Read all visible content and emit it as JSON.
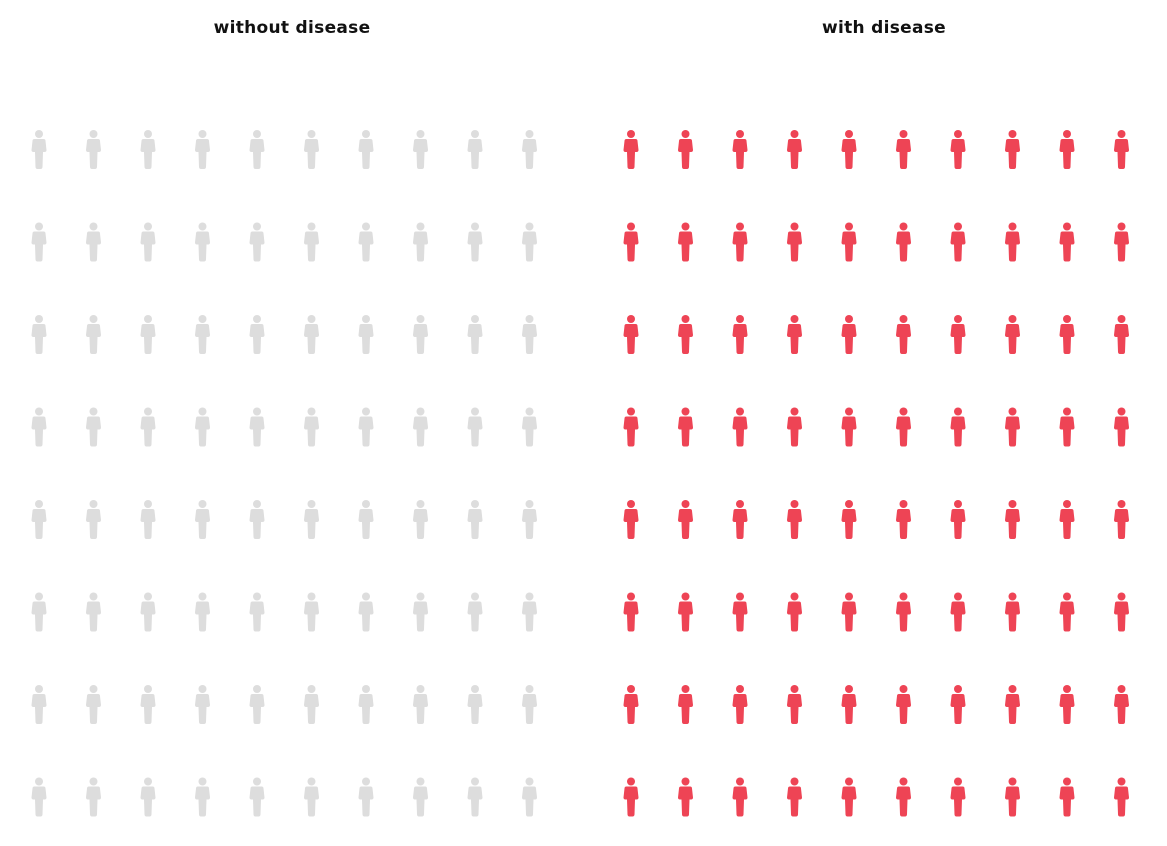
{
  "chart_data": {
    "type": "pictogram",
    "panels": [
      {
        "title": "without disease",
        "rows": 8,
        "cols": 10,
        "count": 80,
        "color": "#dddddd"
      },
      {
        "title": "with disease",
        "rows": 8,
        "cols": 10,
        "count": 80,
        "color": "#ee4455"
      }
    ],
    "icon": "person-icon"
  }
}
